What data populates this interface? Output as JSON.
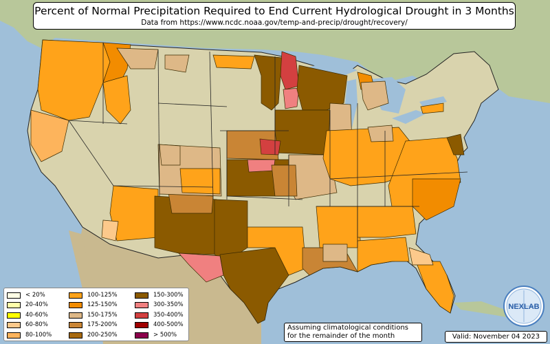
{
  "title": "Percent of Normal Precipitation Required to End Current Hydrological Drought in 3 Months",
  "subtitle": "Data from https://www.ncdc.noaa.gov/temp-and-precip/drought/recovery/",
  "legend": [
    {
      "label": "< 20%",
      "color": "#ffffe6"
    },
    {
      "label": "20-40%",
      "color": "#ffffaa"
    },
    {
      "label": "40-60%",
      "color": "#ffff00"
    },
    {
      "label": "60-80%",
      "color": "#fcc98b"
    },
    {
      "label": "80-100%",
      "color": "#fdb45c"
    },
    {
      "label": "100-125%",
      "color": "#ffa31a"
    },
    {
      "label": "125-150%",
      "color": "#f28c00"
    },
    {
      "label": "150-175%",
      "color": "#deb887"
    },
    {
      "label": "175-200%",
      "color": "#c98535"
    },
    {
      "label": "200-250%",
      "color": "#a86a10"
    },
    {
      "label": "150-300%",
      "color": "#8b5a00"
    },
    {
      "label": "300-350%",
      "color": "#f08080"
    },
    {
      "label": "350-400%",
      "color": "#d34040"
    },
    {
      "label": "400-500%",
      "color": "#a00000"
    },
    {
      "label": "> 500%",
      "color": "#8b004b"
    }
  ],
  "note": [
    "Assuming climatological conditions",
    "for the remainder of the month"
  ],
  "valid": "Valid: November 04 2023",
  "logo_text": "NEXLAB"
}
